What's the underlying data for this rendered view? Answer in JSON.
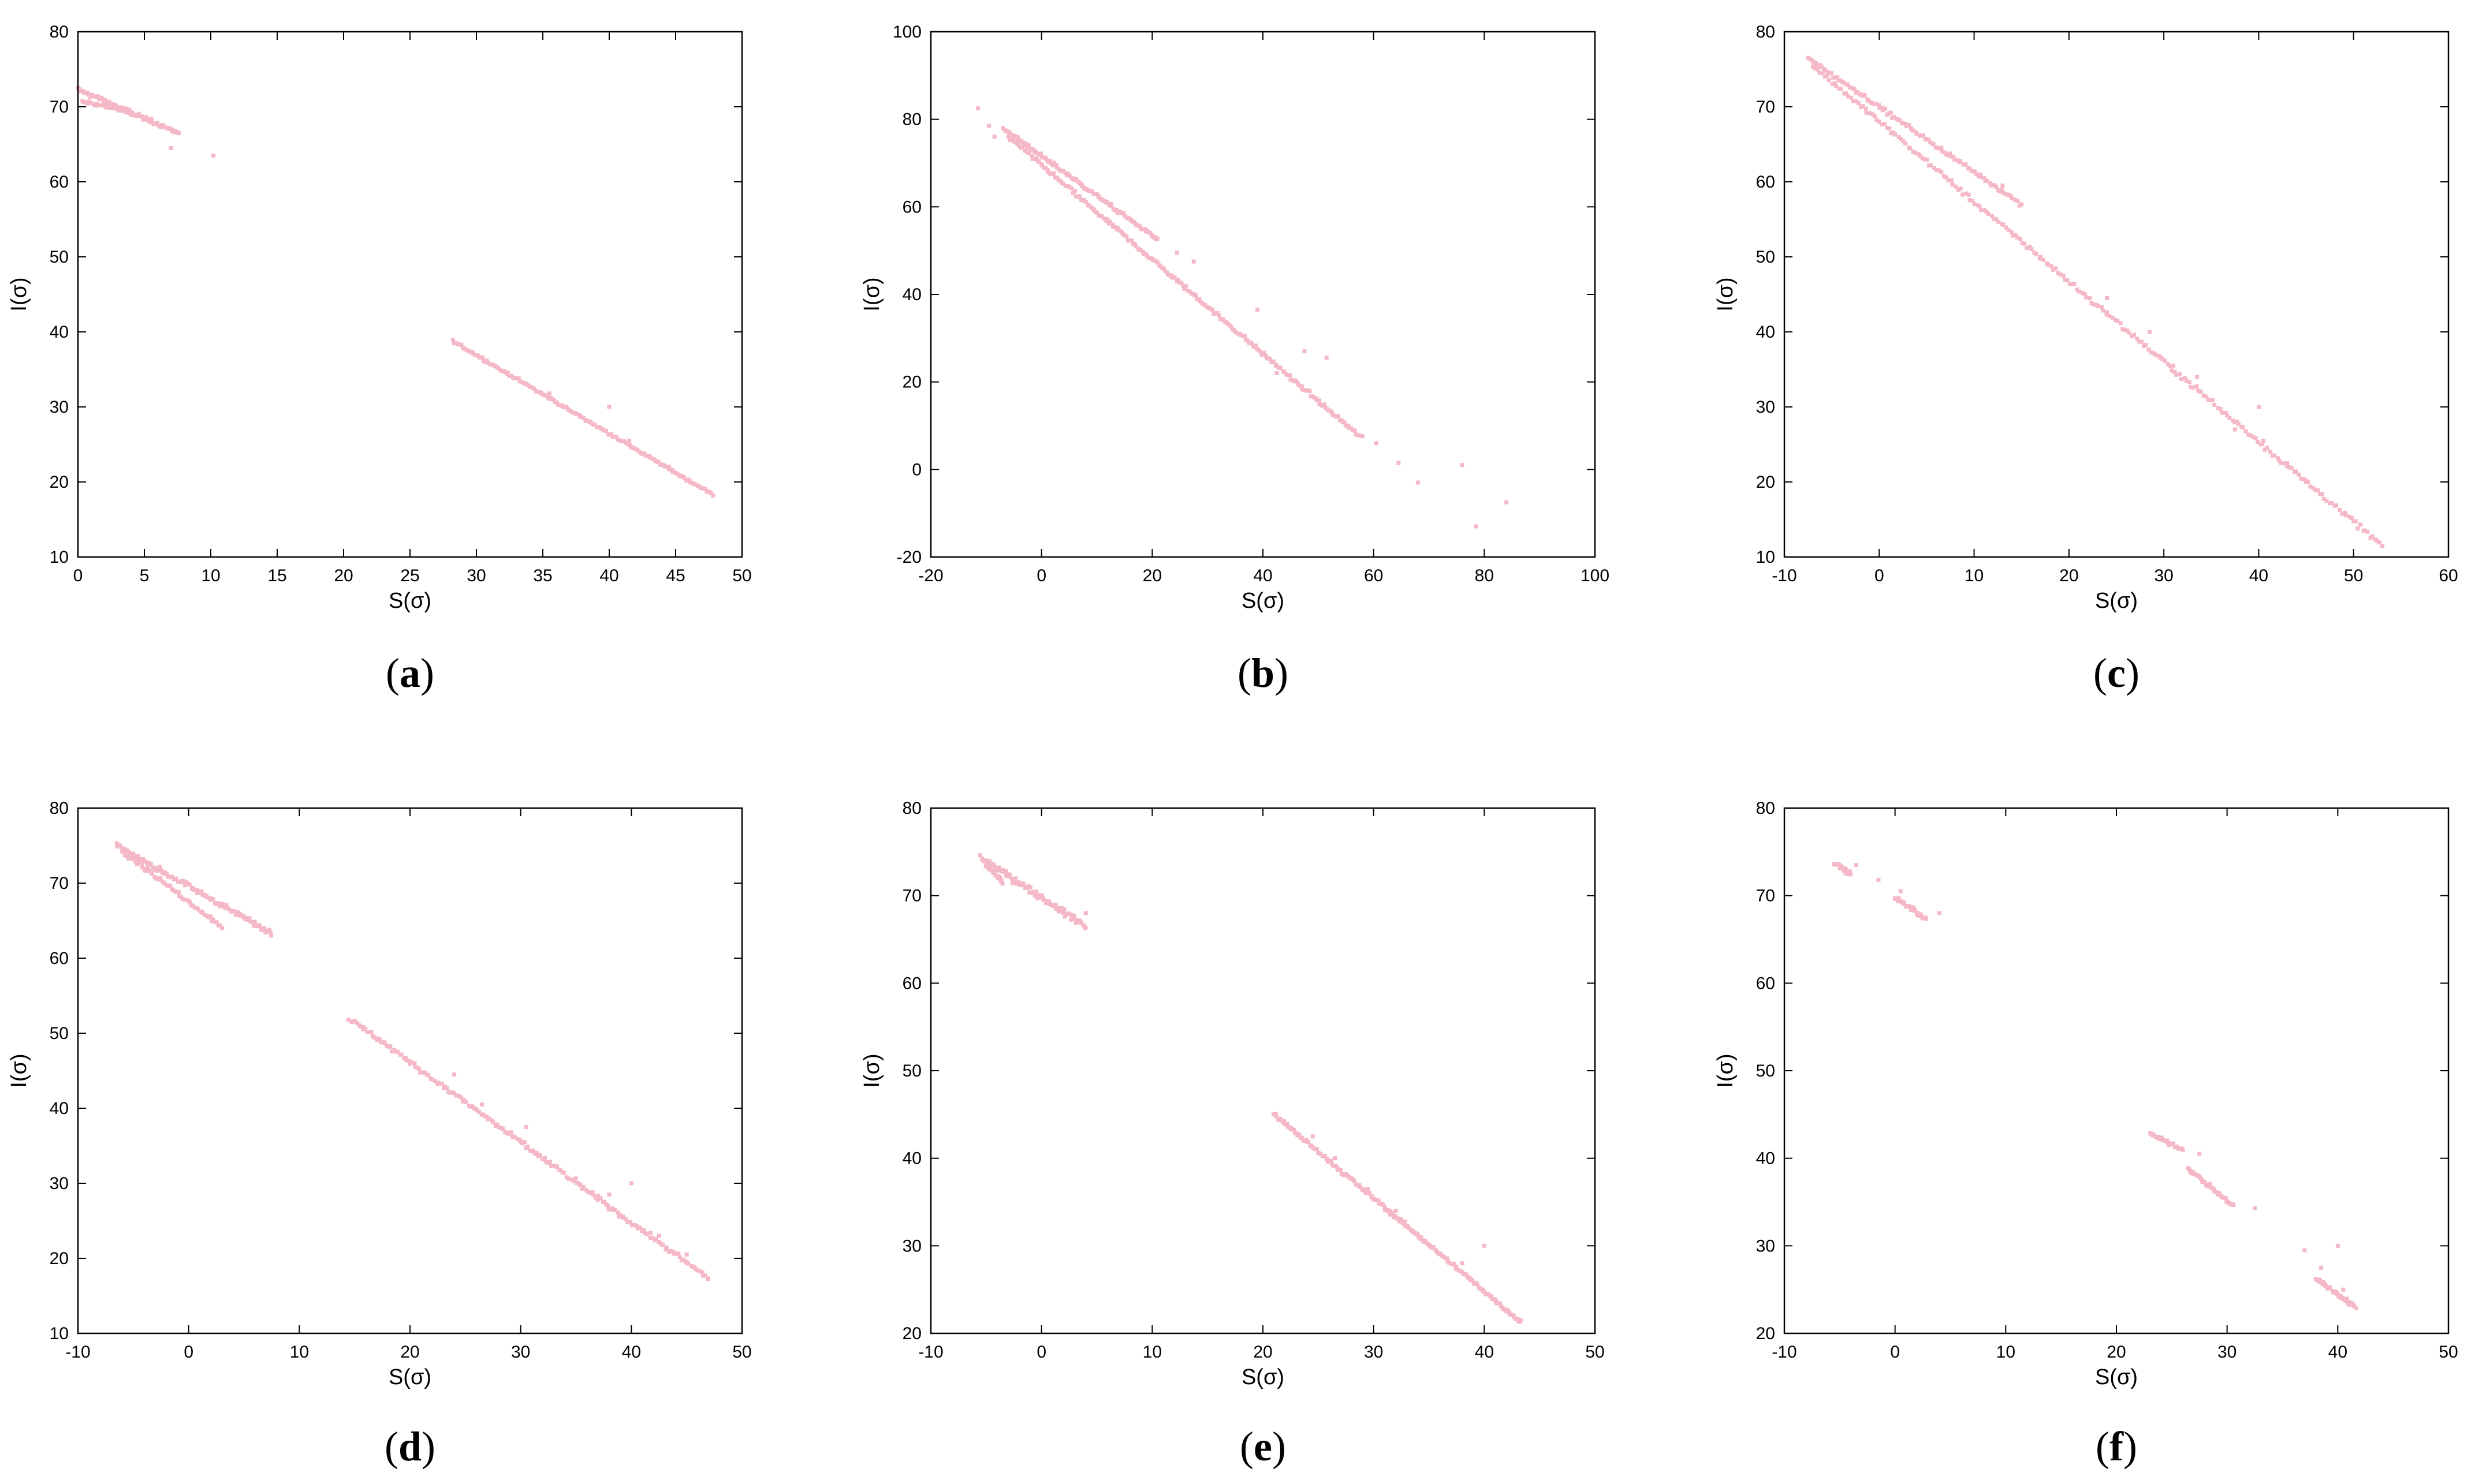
{
  "colors": {
    "points": "#f5b8c6",
    "axes": "#000000"
  },
  "chart_data": [
    {
      "type": "scatter",
      "caption": "(a)",
      "caption_letter": "a",
      "xlabel": "S(σ)",
      "ylabel": "I(σ)",
      "xlim": [
        0,
        50
      ],
      "ylim": [
        10,
        80
      ],
      "xticks": [
        0,
        5,
        10,
        15,
        20,
        25,
        30,
        35,
        40,
        45,
        50
      ],
      "yticks": [
        10,
        20,
        30,
        40,
        50,
        60,
        70,
        80
      ],
      "segments": [
        {
          "from": [
            0,
            72.3
          ],
          "to": [
            7.6,
            66.5
          ],
          "n": 80,
          "spread": 0.4
        },
        {
          "from": [
            0.3,
            70.8
          ],
          "to": [
            4.5,
            68.8
          ],
          "n": 30,
          "spread": 0.3
        },
        {
          "from": [
            28.2,
            38.8
          ],
          "to": [
            47.8,
            18.3
          ],
          "n": 160,
          "spread": 0.25
        }
      ],
      "points": [
        [
          10.2,
          63.5
        ],
        [
          7.0,
          64.5
        ],
        [
          35.5,
          31.8
        ],
        [
          40.0,
          30.0
        ],
        [
          41.5,
          25.5
        ],
        [
          43.0,
          23.5
        ],
        [
          44.5,
          22.0
        ]
      ]
    },
    {
      "type": "scatter",
      "caption": "(b)",
      "caption_letter": "b",
      "xlabel": "S(σ)",
      "ylabel": "I(σ)",
      "xlim": [
        -20,
        100
      ],
      "ylim": [
        -20,
        100
      ],
      "xticks": [
        -20,
        0,
        20,
        40,
        60,
        80,
        100
      ],
      "yticks": [
        -20,
        0,
        20,
        40,
        60,
        80,
        100
      ],
      "segments": [
        {
          "from": [
            -7,
            78
          ],
          "to": [
            21,
            52.5
          ],
          "n": 120,
          "spread": 0.6
        },
        {
          "from": [
            -6,
            76
          ],
          "to": [
            58,
            7
          ],
          "n": 220,
          "spread": 0.7
        }
      ],
      "points": [
        [
          -11.5,
          82.5
        ],
        [
          -9.5,
          78.5
        ],
        [
          -8.5,
          76.0
        ],
        [
          27.5,
          47.5
        ],
        [
          24.5,
          49.5
        ],
        [
          39.0,
          36.5
        ],
        [
          47.5,
          27.0
        ],
        [
          51.5,
          25.5
        ],
        [
          60.5,
          6.0
        ],
        [
          64.5,
          1.5
        ],
        [
          68.0,
          -3.0
        ],
        [
          76.0,
          1.0
        ],
        [
          78.5,
          -13.0
        ],
        [
          84.0,
          -7.5
        ],
        [
          42.5,
          22.0
        ],
        [
          45.0,
          20.5
        ]
      ]
    },
    {
      "type": "scatter",
      "caption": "(c)",
      "caption_letter": "c",
      "xlabel": "S(σ)",
      "ylabel": "I(σ)",
      "xlim": [
        -10,
        60
      ],
      "ylim": [
        10,
        80
      ],
      "xticks": [
        -10,
        0,
        10,
        20,
        30,
        40,
        50,
        60
      ],
      "yticks": [
        10,
        20,
        30,
        40,
        50,
        60,
        70,
        80
      ],
      "segments": [
        {
          "from": [
            -7.5,
            76.5
          ],
          "to": [
            15,
            57
          ],
          "n": 120,
          "spread": 0.4
        },
        {
          "from": [
            -7.0,
            75.5
          ],
          "to": [
            53,
            11.5
          ],
          "n": 240,
          "spread": 0.5
        }
      ],
      "points": [
        [
          13.0,
          59.5
        ],
        [
          24.0,
          44.5
        ],
        [
          28.5,
          40.0
        ],
        [
          31.0,
          35.5
        ],
        [
          33.5,
          34.0
        ],
        [
          37.5,
          27.0
        ],
        [
          40.0,
          30.0
        ],
        [
          40.5,
          25.5
        ],
        [
          43.0,
          22.5
        ],
        [
          45.0,
          20.0
        ]
      ]
    },
    {
      "type": "scatter",
      "caption": "(d)",
      "caption_letter": "d",
      "xlabel": "S(σ)",
      "ylabel": "I(σ)",
      "xlim": [
        -10,
        50
      ],
      "ylim": [
        10,
        80
      ],
      "xticks": [
        -10,
        0,
        10,
        20,
        30,
        40,
        50
      ],
      "yticks": [
        10,
        20,
        30,
        40,
        50,
        60,
        70,
        80
      ],
      "segments": [
        {
          "from": [
            -6.5,
            75
          ],
          "to": [
            7.5,
            63.3
          ],
          "n": 120,
          "spread": 0.5
        },
        {
          "from": [
            -6.0,
            74.3
          ],
          "to": [
            3.0,
            64.2
          ],
          "n": 60,
          "spread": 0.4
        },
        {
          "from": [
            14.5,
            52
          ],
          "to": [
            47,
            17.3
          ],
          "n": 200,
          "spread": 0.5
        }
      ],
      "points": [
        [
          40.0,
          30.0
        ],
        [
          30.5,
          37.5
        ],
        [
          38.0,
          28.5
        ],
        [
          42.5,
          23.0
        ],
        [
          45.0,
          20.5
        ],
        [
          24.0,
          44.5
        ],
        [
          26.5,
          40.5
        ]
      ]
    },
    {
      "type": "scatter",
      "caption": "(e)",
      "caption_letter": "e",
      "xlabel": "S(σ)",
      "ylabel": "I(σ)",
      "xlim": [
        -10,
        50
      ],
      "ylim": [
        20,
        80
      ],
      "xticks": [
        -10,
        0,
        10,
        20,
        30,
        40,
        50
      ],
      "yticks": [
        20,
        30,
        40,
        50,
        60,
        70,
        80
      ],
      "segments": [
        {
          "from": [
            -5.5,
            74.3
          ],
          "to": [
            4.0,
            66.5
          ],
          "n": 100,
          "spread": 0.5
        },
        {
          "from": [
            -5.0,
            73.5
          ],
          "to": [
            -3.5,
            71.5
          ],
          "n": 30,
          "spread": 0.4
        },
        {
          "from": [
            21,
            45
          ],
          "to": [
            43.3,
            21.3
          ],
          "n": 200,
          "spread": 0.35
        }
      ],
      "points": [
        [
          4.0,
          68.0
        ],
        [
          40.0,
          30.0
        ],
        [
          38.0,
          28.0
        ],
        [
          26.5,
          40.0
        ],
        [
          29.5,
          36.5
        ],
        [
          32.0,
          34.0
        ],
        [
          24.5,
          42.5
        ]
      ]
    },
    {
      "type": "scatter",
      "caption": "(f)",
      "caption_letter": "f",
      "xlabel": "S(σ)",
      "ylabel": "I(σ)",
      "xlim": [
        -10,
        50
      ],
      "ylim": [
        20,
        80
      ],
      "xticks": [
        -10,
        0,
        10,
        20,
        30,
        40,
        50
      ],
      "yticks": [
        20,
        30,
        40,
        50,
        60,
        70,
        80
      ],
      "segments": [
        {
          "from": [
            -5.5,
            73.8
          ],
          "to": [
            -4.0,
            72.5
          ],
          "n": 25,
          "spread": 0.5
        },
        {
          "from": [
            0.0,
            69.8
          ],
          "to": [
            2.8,
            67.3
          ],
          "n": 40,
          "spread": 0.4
        },
        {
          "from": [
            23.0,
            42.8
          ],
          "to": [
            26.0,
            41.0
          ],
          "n": 30,
          "spread": 0.3
        },
        {
          "from": [
            26.5,
            38.8
          ],
          "to": [
            30.6,
            34.5
          ],
          "n": 40,
          "spread": 0.3
        },
        {
          "from": [
            38.0,
            26.3
          ],
          "to": [
            41.6,
            23.0
          ],
          "n": 45,
          "spread": 0.4
        }
      ],
      "points": [
        [
          -3.5,
          73.5
        ],
        [
          -1.5,
          71.8
        ],
        [
          0.5,
          70.5
        ],
        [
          4.0,
          68.0
        ],
        [
          27.5,
          40.5
        ],
        [
          32.5,
          34.3
        ],
        [
          37.0,
          29.5
        ],
        [
          38.5,
          27.5
        ],
        [
          40.0,
          30.0
        ],
        [
          40.5,
          25.0
        ]
      ]
    }
  ]
}
